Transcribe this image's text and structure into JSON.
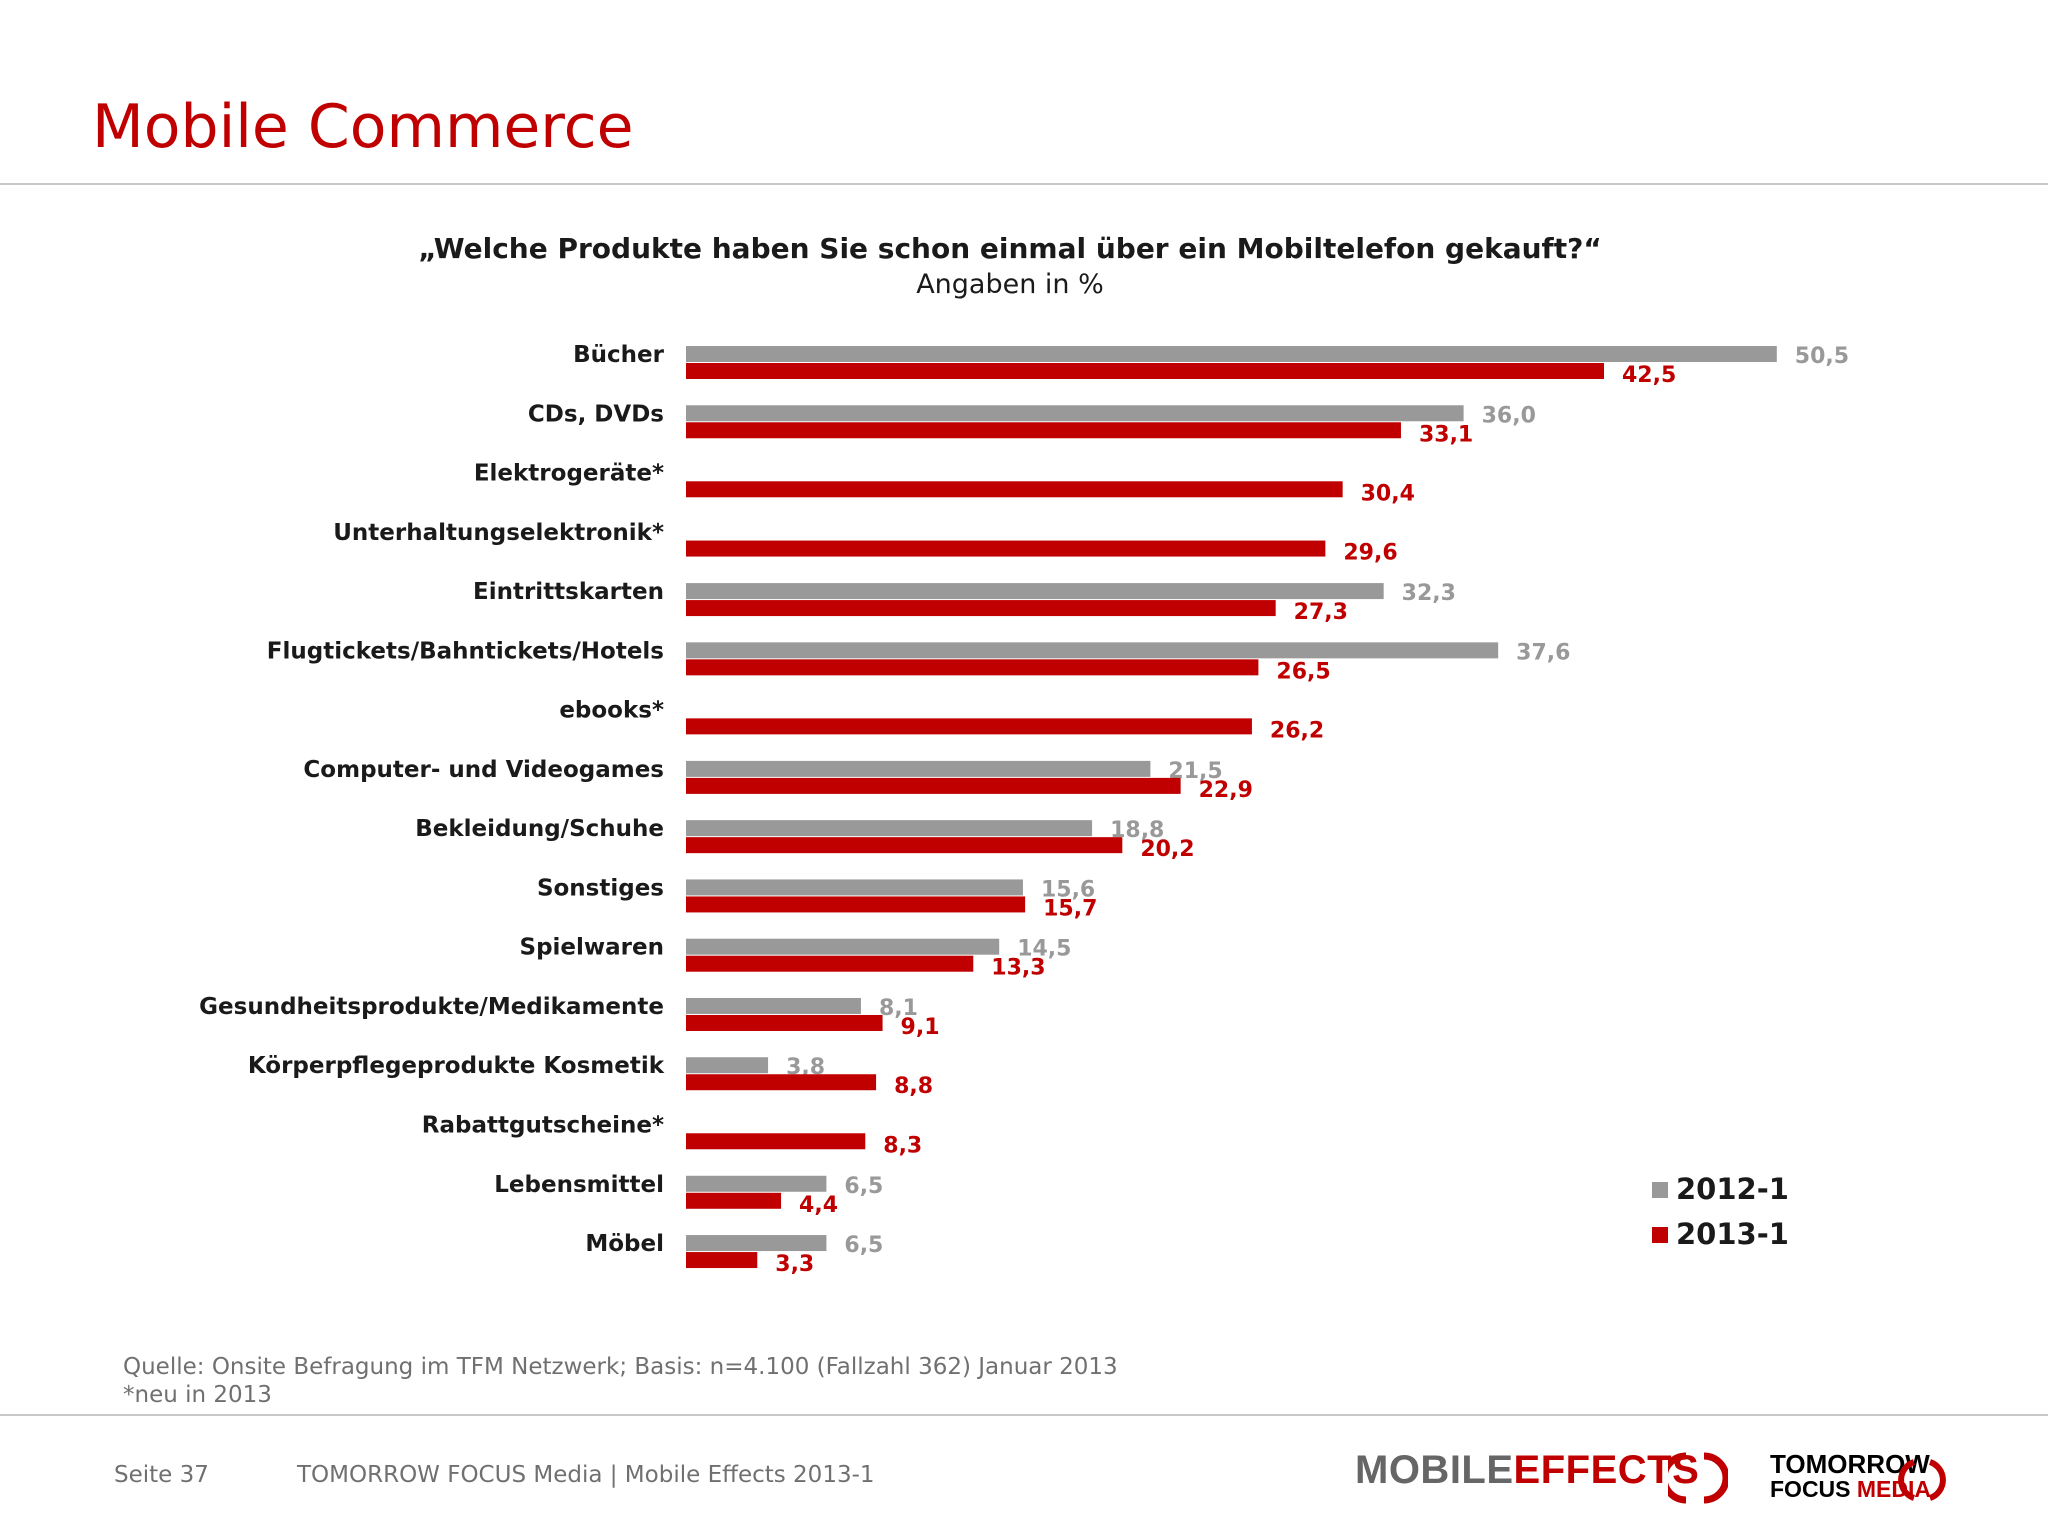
{
  "header": {
    "title": "Mobile Commerce"
  },
  "chart_data": {
    "type": "bar",
    "orientation": "horizontal",
    "title": "„Welche Produkte haben Sie schon einmal über ein Mobiltelefon gekauft?“",
    "subtitle": "Angaben in %",
    "categories": [
      "Bücher",
      "CDs, DVDs",
      "Elektrogeräte*",
      "Unterhaltungselektronik*",
      "Eintrittskarten",
      "Flugtickets/Bahntickets/Hotels",
      "ebooks*",
      "Computer- und Videogames",
      "Bekleidung/Schuhe",
      "Sonstiges",
      "Spielwaren",
      "Gesundheitsprodukte/Medikamente",
      "Körperpflegeprodukte Kosmetik",
      "Rabattgutscheine*",
      "Lebensmittel",
      "Möbel"
    ],
    "series": [
      {
        "name": "2012-1",
        "color": "#999999",
        "values": [
          50.5,
          36.0,
          null,
          null,
          32.3,
          37.6,
          null,
          21.5,
          18.8,
          15.6,
          14.5,
          8.1,
          3.8,
          null,
          6.5,
          6.5
        ],
        "labels": [
          "50,5",
          "36,0",
          "",
          "",
          "32,3",
          "37,6",
          "",
          "21,5",
          "18,8",
          "15,6",
          "14,5",
          "8,1",
          "3,8",
          "",
          "6,5",
          "6,5"
        ]
      },
      {
        "name": "2013-1",
        "color": "#c00000",
        "values": [
          42.5,
          33.1,
          30.4,
          29.6,
          27.3,
          26.5,
          26.2,
          22.9,
          20.2,
          15.7,
          13.3,
          9.1,
          8.8,
          8.3,
          4.4,
          3.3
        ],
        "labels": [
          "42,5",
          "33,1",
          "30,4",
          "29,6",
          "27,3",
          "26,5",
          "26,2",
          "22,9",
          "20,2",
          "15,7",
          "13,3",
          "9,1",
          "8,8",
          "8,3",
          "4,4",
          "3,3"
        ]
      }
    ],
    "xlim": [
      0,
      55
    ],
    "grid": false,
    "legend": "bottom-right"
  },
  "source": {
    "line1": "Quelle: Onsite Befragung im TFM Netzwerk; Basis: n=4.100 (Fallzahl 362) Januar 2013",
    "line2": "*neu in 2013"
  },
  "footer": {
    "page": "Seite 37",
    "company": "TOMORROW FOCUS Media  |  Mobile Effects 2013-1"
  },
  "logos": {
    "mobile_effects": {
      "part1": "MOBILE",
      "part2": "EFFECTS"
    },
    "tomorrow_focus": {
      "line1": "TOMORROW",
      "line2a": "FOCUS",
      "line2b": "MEDIA"
    }
  }
}
